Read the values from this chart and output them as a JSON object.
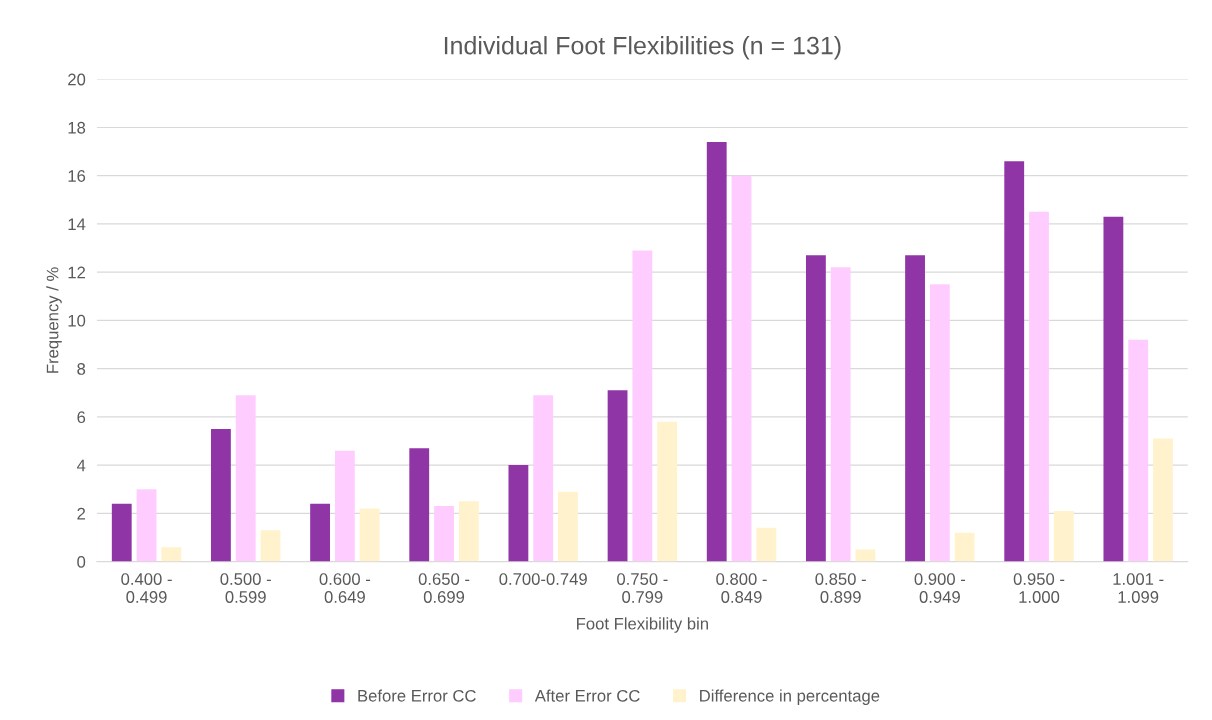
{
  "chart_data": {
    "type": "bar",
    "title": "Individual Foot Flexibilities (n = 131)",
    "xlabel": "Foot Flexibility bin",
    "ylabel": "Frequency / %",
    "categories": [
      "0.400 -\n0.499",
      "0.500 -\n0.599",
      "0.600 -\n0.649",
      "0.650 -\n0.699",
      "0.700-0.749",
      "0.750 -\n0.799",
      "0.800 -\n0.849",
      "0.850 -\n0.899",
      "0.900 -\n0.949",
      "0.950 -\n1.000",
      "1.001 -\n1.099"
    ],
    "series": [
      {
        "name": "Before Error CC",
        "color": "#9035a6",
        "values": [
          2.4,
          5.5,
          2.4,
          4.7,
          4.0,
          7.1,
          17.4,
          12.7,
          12.7,
          16.6,
          14.3
        ]
      },
      {
        "name": "After Error CC",
        "color": "#ffccff",
        "values": [
          3.0,
          6.9,
          4.6,
          2.3,
          6.9,
          12.9,
          16.0,
          12.2,
          11.5,
          14.5,
          9.2
        ]
      },
      {
        "name": "Difference in percentage",
        "color": "#fff2cc",
        "values": [
          0.6,
          1.3,
          2.2,
          2.5,
          2.9,
          5.8,
          1.4,
          0.5,
          1.2,
          2.1,
          5.1
        ]
      }
    ],
    "ylim": [
      0,
      20
    ],
    "yticks": [
      0,
      2,
      4,
      6,
      8,
      10,
      12,
      14,
      16,
      18,
      20
    ],
    "grid": "y",
    "legend": "bottom"
  }
}
